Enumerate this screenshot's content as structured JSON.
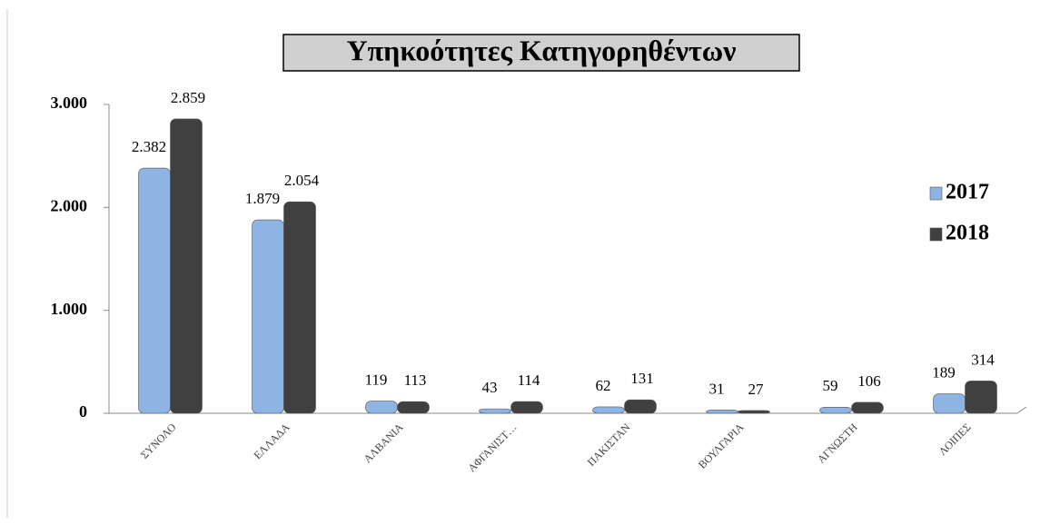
{
  "chart_data": {
    "type": "bar",
    "title": "Υπηκοότητες Κατηγορηθέντων",
    "categories": [
      "ΣΥΝΟΛΟ",
      "ΕΛΛΑΔΑ",
      "ΑΛΒΑΝΙΑ",
      "ΑΦΓΑΝΙΣΤ…",
      "ΠΑΚΙΣΤΑΝ",
      "ΒΟΥΛΓΑΡΙΑ",
      "ΑΓΝΩΣΤΗ",
      "ΛΟΙΠΕΣ"
    ],
    "series": [
      {
        "name": "2017",
        "color": "#8db4e2",
        "values": [
          2382,
          1879,
          119,
          43,
          62,
          31,
          59,
          189
        ],
        "value_labels": [
          "2.382",
          "1.879",
          "119",
          "43",
          "62",
          "31",
          "59",
          "189"
        ]
      },
      {
        "name": "2018",
        "color": "#404040",
        "values": [
          2859,
          2054,
          113,
          114,
          131,
          27,
          106,
          314
        ],
        "value_labels": [
          "2.859",
          "2.054",
          "113",
          "114",
          "131",
          "27",
          "106",
          "314"
        ]
      }
    ],
    "ylim": [
      0,
      3000
    ],
    "yticks": [
      0,
      {
        "value": 1000,
        "label": "1.000"
      },
      {
        "value": 2000,
        "label": "2.000"
      },
      {
        "value": 3000,
        "label": "3.000"
      }
    ],
    "legend": "right"
  }
}
